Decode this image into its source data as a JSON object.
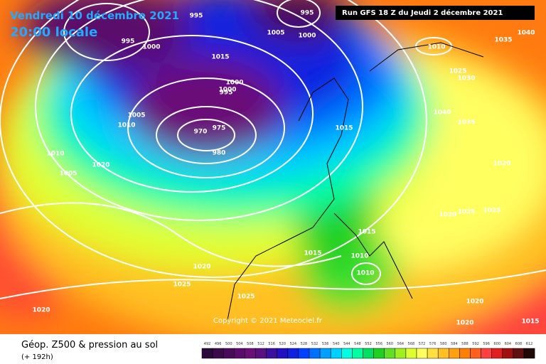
{
  "header": {
    "date": "Vendredi 10 décembre 2021",
    "time": "20:00 locale",
    "run": "Run GFS 18 Z du Jeudi 2 décembre 2021"
  },
  "copyright": "Copyright © 2021 Meteociel.fr",
  "footer": {
    "title": "Géop. Z500 & pression au sol",
    "lead": "(+ 192h)"
  },
  "isobar_labels": [
    "995",
    "995",
    "1000",
    "995",
    "1000",
    "1005",
    "1000",
    "1010",
    "1040",
    "1035",
    "1015",
    "1000",
    "995",
    "1025",
    "1030",
    "1005",
    "1010",
    "970",
    "975",
    "980",
    "1040",
    "1035",
    "1015",
    "1010",
    "1020",
    "1005",
    "1020",
    "1020",
    "1025",
    "1025",
    "1015",
    "1015",
    "1010",
    "1010",
    "1020",
    "1025",
    "1025",
    "1020",
    "1020",
    "1020",
    "1015"
  ],
  "legend": {
    "ticks": [
      492,
      496,
      500,
      504,
      508,
      512,
      516,
      520,
      524,
      528,
      532,
      536,
      540,
      544,
      548,
      552,
      556,
      560,
      564,
      568,
      572,
      576,
      580,
      584,
      588,
      592,
      596,
      600,
      604,
      608,
      612
    ],
    "colors": [
      "#2a0a3a",
      "#3a0a4a",
      "#4a0a5a",
      "#5a0c6a",
      "#6a1078",
      "#5a1080",
      "#3a10a0",
      "#2010c0",
      "#1020e0",
      "#0040ff",
      "#0070ff",
      "#00a0ff",
      "#00d0ff",
      "#00ffe0",
      "#00ffa0",
      "#00e060",
      "#20d020",
      "#60e020",
      "#a0f020",
      "#e0ff30",
      "#ffff60",
      "#ffe040",
      "#ffc020",
      "#ffa010",
      "#ff8000",
      "#ff6020",
      "#ff4040",
      "#e02020",
      "#a01010",
      "#601010",
      "#200808"
    ]
  }
}
